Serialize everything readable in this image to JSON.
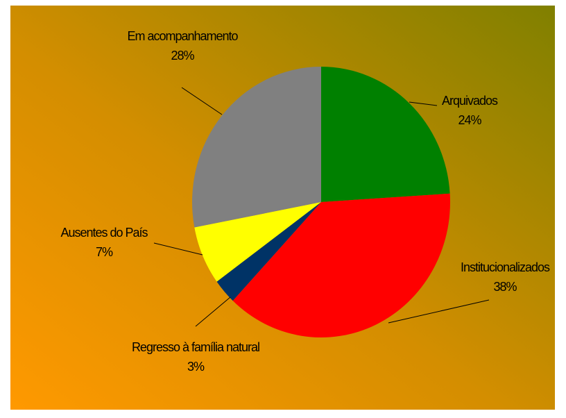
{
  "chart_data": {
    "type": "pie",
    "categories": [
      "Arquivados",
      "Institucionalizados",
      "Regresso à família natural",
      "Ausentes do País",
      "Em acompanhamento"
    ],
    "values": [
      24,
      38,
      3,
      7,
      28
    ],
    "value_labels": [
      "24%",
      "38%",
      "3%",
      "7%",
      "28%"
    ],
    "colors": [
      "#008000",
      "#ff0000",
      "#003366",
      "#ffff00",
      "#808080"
    ]
  }
}
